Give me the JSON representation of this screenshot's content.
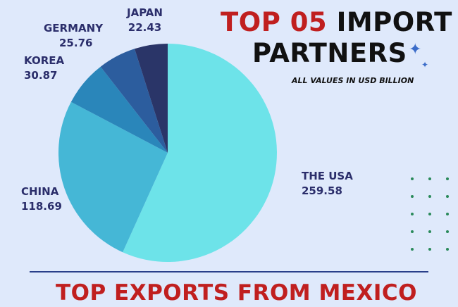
{
  "title": {
    "number_part": "TOP 05",
    "word_part": "IMPORT",
    "line2": "PARTNERS"
  },
  "subtitle": "ALL VALUES IN USD BILLION",
  "bottom_title": "TOP EXPORTS FROM MEXICO",
  "colors": {
    "background": "#dfe9fb",
    "title_red": "#c01f1f",
    "label_text": "#2b2e6b",
    "divider": "#2a3f8a",
    "dots": "#2a8a5a"
  },
  "chart_data": {
    "type": "pie",
    "title": "TOP 05 IMPORT PARTNERS",
    "unit": "USD BILLION",
    "slices": [
      {
        "label": "THE USA",
        "value": 259.58,
        "display": "259.58",
        "color": "#6de3e9"
      },
      {
        "label": "CHINA",
        "value": 118.69,
        "display": "118.69",
        "color": "#45b7d6"
      },
      {
        "label": "KOREA",
        "value": 30.87,
        "display": "30.87",
        "color": "#2a86ba"
      },
      {
        "label": "GERMANY",
        "value": 25.76,
        "display": "25.76",
        "color": "#2c5d9e"
      },
      {
        "label": "JAPAN",
        "value": 22.43,
        "display": "22.43",
        "color": "#2a3568"
      }
    ]
  }
}
